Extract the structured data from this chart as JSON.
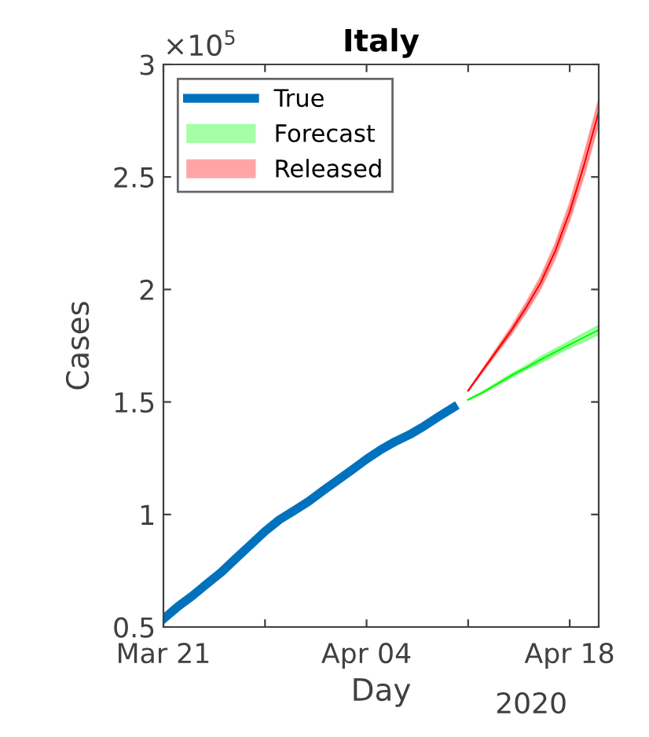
{
  "chart_data": {
    "type": "line",
    "title": "Italy",
    "xlabel": "Day",
    "ylabel": "Cases",
    "annotations": [
      "×10$^{5}$",
      "2020"
    ],
    "xlim": [
      "2020-03-21",
      "2020-04-20"
    ],
    "xticks": [
      {
        "value": "2020-03-21",
        "label": "Mar 21"
      },
      {
        "value": "2020-03-28",
        "label": null
      },
      {
        "value": "2020-04-04",
        "label": "Apr 04"
      },
      {
        "value": "2020-04-11",
        "label": null
      },
      {
        "value": "2020-04-18",
        "label": "Apr 18"
      }
    ],
    "ylim": [
      0.5,
      3
    ],
    "yticks": [
      0.5,
      1,
      1.5,
      2,
      2.5,
      3
    ],
    "grid": false,
    "legend": "top left",
    "series": [
      {
        "name": "True",
        "color": "#0072bd",
        "x": [
          "2020-03-21",
          "2020-03-22",
          "2020-03-23",
          "2020-03-24",
          "2020-03-25",
          "2020-03-26",
          "2020-03-27",
          "2020-03-28",
          "2020-03-29",
          "2020-03-30",
          "2020-03-31",
          "2020-04-01",
          "2020-04-02",
          "2020-04-03",
          "2020-04-04",
          "2020-04-05",
          "2020-04-06",
          "2020-04-07",
          "2020-04-08",
          "2020-04-09",
          "2020-04-10"
        ],
        "values": [
          0.536,
          0.591,
          0.639,
          0.692,
          0.744,
          0.805,
          0.865,
          0.925,
          0.977,
          1.017,
          1.058,
          1.106,
          1.152,
          1.198,
          1.246,
          1.289,
          1.325,
          1.356,
          1.394,
          1.436,
          1.476
        ]
      },
      {
        "name": "Forecast",
        "color": "#00ff00",
        "x": [
          "2020-04-11",
          "2020-04-12",
          "2020-04-13",
          "2020-04-14",
          "2020-04-15",
          "2020-04-16",
          "2020-04-17",
          "2020-04-18",
          "2020-04-19",
          "2020-04-20"
        ],
        "values": [
          1.51,
          1.542,
          1.58,
          1.618,
          1.652,
          1.688,
          1.722,
          1.755,
          1.788,
          1.82
        ],
        "lower": [
          1.51,
          1.54,
          1.575,
          1.61,
          1.645,
          1.675,
          1.71,
          1.74,
          1.77,
          1.8
        ],
        "upper": [
          1.51,
          1.545,
          1.585,
          1.625,
          1.66,
          1.7,
          1.735,
          1.77,
          1.805,
          1.84
        ]
      },
      {
        "name": "Released",
        "color": "#ff0000",
        "x": [
          "2020-04-11",
          "2020-04-12",
          "2020-04-13",
          "2020-04-14",
          "2020-04-15",
          "2020-04-16",
          "2020-04-17",
          "2020-04-18",
          "2020-04-19",
          "2020-04-20"
        ],
        "values": [
          1.55,
          1.64,
          1.73,
          1.82,
          1.92,
          2.03,
          2.17,
          2.345,
          2.555,
          2.79
        ],
        "lower": [
          1.55,
          1.635,
          1.72,
          1.805,
          1.9,
          2.005,
          2.14,
          2.31,
          2.51,
          2.74
        ],
        "upper": [
          1.55,
          1.645,
          1.74,
          1.835,
          1.94,
          2.055,
          2.2,
          2.38,
          2.6,
          2.84
        ]
      }
    ]
  }
}
